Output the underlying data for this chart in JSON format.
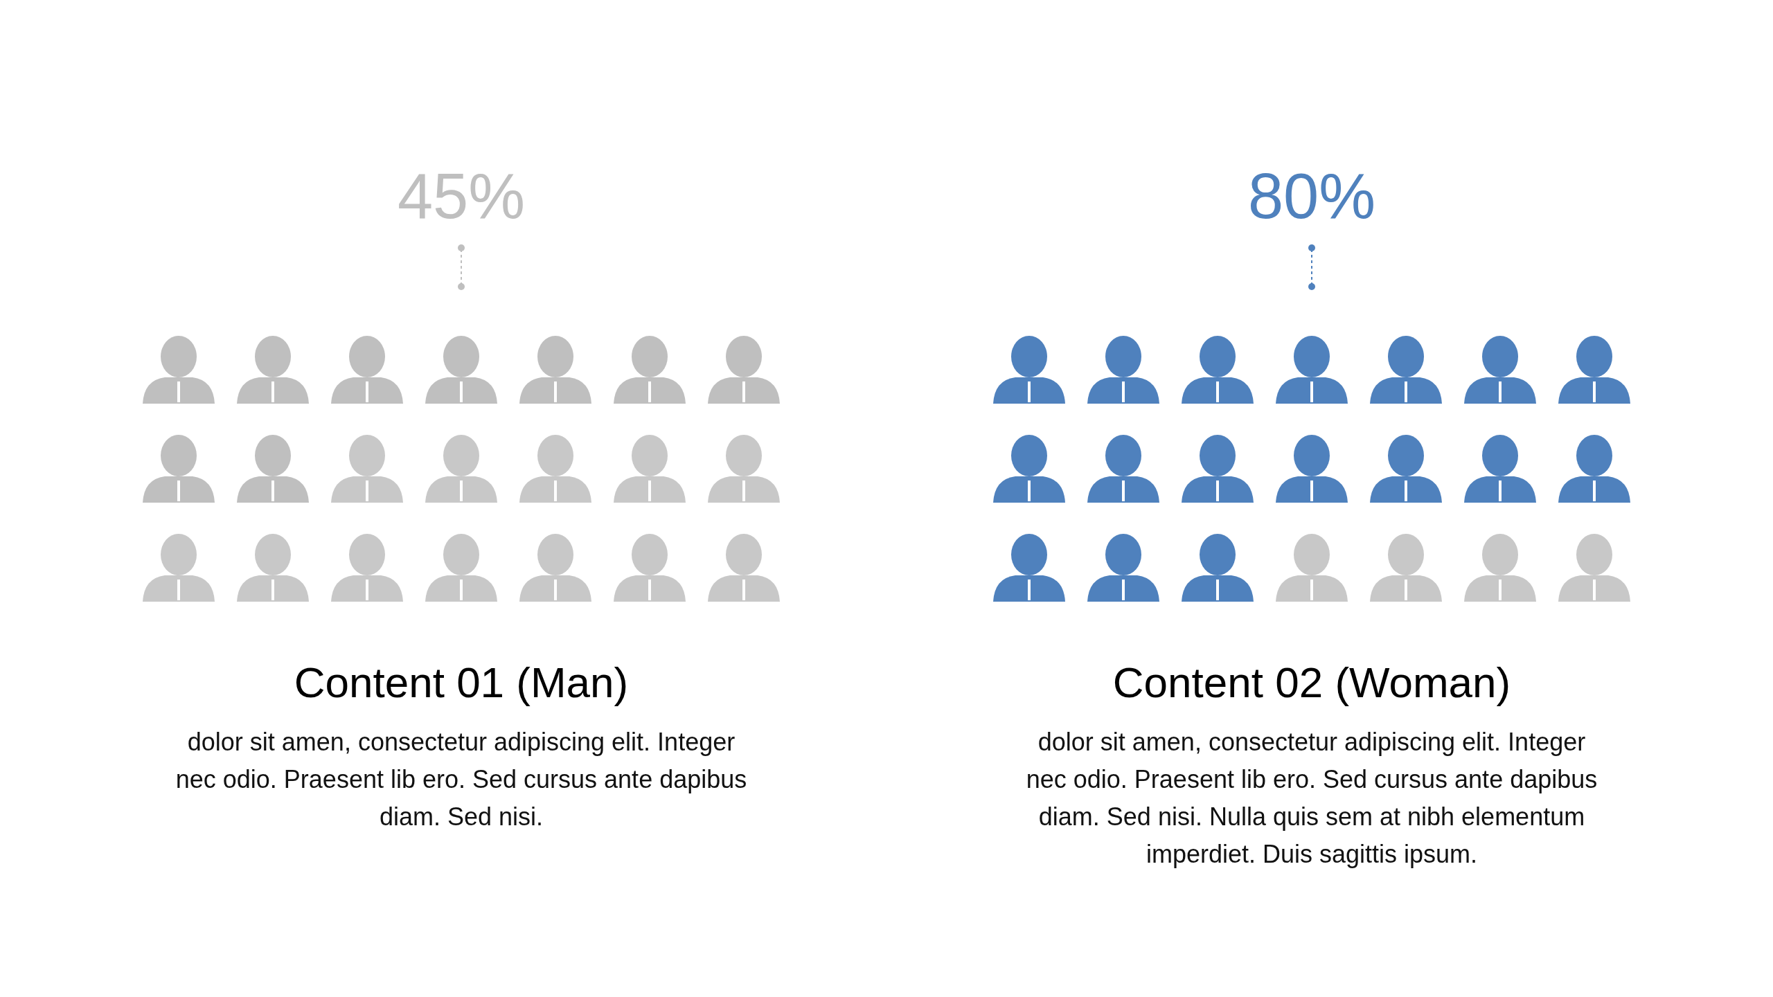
{
  "chart_data": [
    {
      "type": "other",
      "title": "Content 01 (Man)",
      "values": [
        45
      ],
      "value_labels": [
        "45%"
      ],
      "color": "#bfbfbf",
      "annotations": [
        "dolor sit amen, consectetur adipiscing elit. Integer nec odio. Praesent lib ero. Sed cursus ante dapibus diam. Sed nisi."
      ]
    },
    {
      "type": "other",
      "title": "Content 02 (Woman)",
      "values": [
        80
      ],
      "value_labels": [
        "80%"
      ],
      "color": "#4f81bd",
      "annotations": [
        "dolor sit amen, consectetur adipiscing elit. Integer nec odio. Praesent lib ero. Sed cursus ante dapibus diam. Sed nisi. Nulla quis sem at nibh elementum imperdiet. Duis sagittis ipsum."
      ]
    }
  ]
}
